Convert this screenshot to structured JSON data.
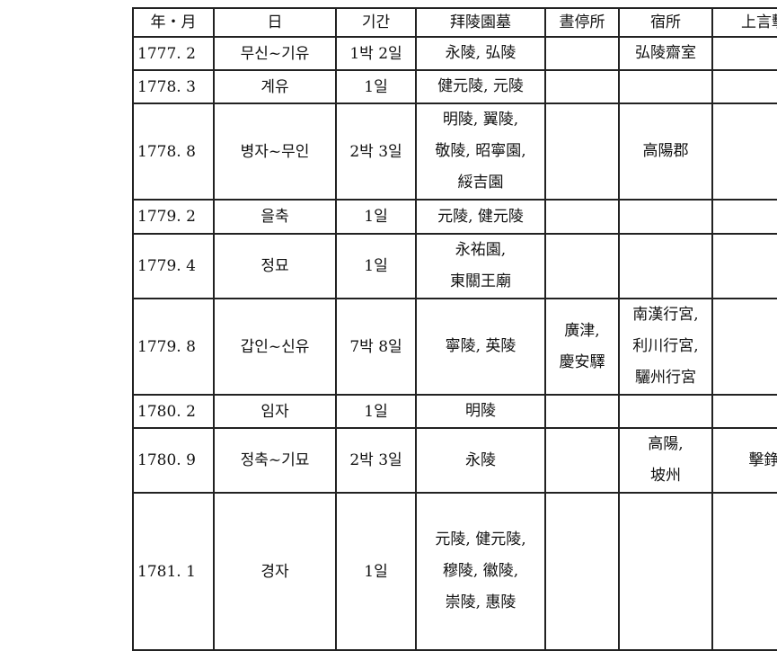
{
  "headers": [
    "年・月",
    "日",
    "기간",
    "拜陵園墓",
    "晝停所",
    "宿所",
    "上言擊"
  ],
  "rows": [
    {
      "ym": "1777. 2",
      "day": "무신~기유",
      "period": "1박 2일",
      "tombs": [
        "永陵, 弘陵"
      ],
      "stop": [],
      "lodging": [
        "弘陵齋室"
      ],
      "appeal": ""
    },
    {
      "ym": "1778. 3",
      "day": "계유",
      "period": "1일",
      "tombs": [
        "健元陵, 元陵"
      ],
      "stop": [],
      "lodging": [],
      "appeal": ""
    },
    {
      "ym": "1778. 8",
      "day": "병자~무인",
      "period": "2박 3일",
      "tombs": [
        "明陵, 翼陵,",
        "敬陵, 昭寧園,",
        "綏吉園"
      ],
      "stop": [],
      "lodging": [
        "高陽郡"
      ],
      "appeal": ""
    },
    {
      "ym": "1779. 2",
      "day": "을축",
      "period": "1일",
      "tombs": [
        "元陵, 健元陵"
      ],
      "stop": [],
      "lodging": [],
      "appeal": ""
    },
    {
      "ym": "1779. 4",
      "day": "정묘",
      "period": "1일",
      "tombs": [
        "永祐園,",
        "東關王廟"
      ],
      "stop": [],
      "lodging": [],
      "appeal": ""
    },
    {
      "ym": "1779. 8",
      "day": "갑인~신유",
      "period": "7박 8일",
      "tombs": [
        "寧陵, 英陵"
      ],
      "stop": [
        "廣津,",
        "慶安驛"
      ],
      "lodging": [
        "南漢行宮,",
        "利川行宮,",
        "驪州行宮"
      ],
      "appeal": ""
    },
    {
      "ym": "1780. 2",
      "day": "임자",
      "period": "1일",
      "tombs": [
        "明陵"
      ],
      "stop": [],
      "lodging": [],
      "appeal": ""
    },
    {
      "ym": "1780. 9",
      "day": "정축~기묘",
      "period": "2박 3일",
      "tombs": [
        "永陵"
      ],
      "stop": [],
      "lodging": [
        "高陽,",
        "坡州"
      ],
      "appeal": "擊錚"
    },
    {
      "ym": "1781. 1",
      "day": "경자",
      "period": "1일",
      "tombs": [
        "元陵, 健元陵,",
        "穆陵, 徽陵,",
        "崇陵, 惠陵"
      ],
      "stop": [],
      "lodging": [],
      "appeal": ""
    }
  ]
}
